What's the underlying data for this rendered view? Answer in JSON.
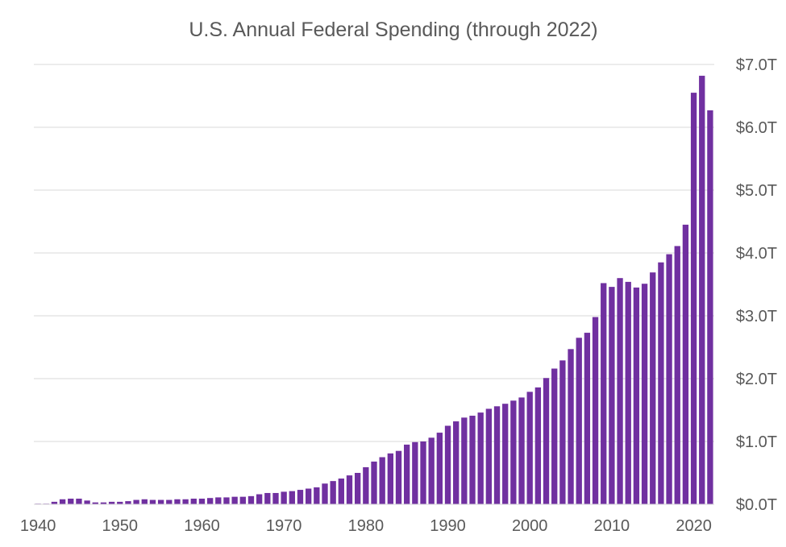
{
  "chart_data": {
    "type": "bar",
    "title": "U.S. Annual Federal Spending (through 2022)",
    "xlabel": "",
    "ylabel": "",
    "bar_color": "#7030a0",
    "grid": true,
    "y_axis_position": "right",
    "ylim": [
      0,
      7.0
    ],
    "y_ticks": [
      0,
      1,
      2,
      3,
      4,
      5,
      6,
      7
    ],
    "y_tick_labels": [
      "$0.0T",
      "$1.0T",
      "$2.0T",
      "$3.0T",
      "$4.0T",
      "$5.0T",
      "$6.0T",
      "$7.0T"
    ],
    "x_ticks": [
      1940,
      1950,
      1960,
      1970,
      1980,
      1990,
      2000,
      2010,
      2020
    ],
    "x_tick_labels": [
      "1940",
      "1950",
      "1960",
      "1970",
      "1980",
      "1990",
      "2000",
      "2010",
      "2020"
    ],
    "categories": [
      1940,
      1941,
      1942,
      1943,
      1944,
      1945,
      1946,
      1947,
      1948,
      1949,
      1950,
      1951,
      1952,
      1953,
      1954,
      1955,
      1956,
      1957,
      1958,
      1959,
      1960,
      1961,
      1962,
      1963,
      1964,
      1965,
      1966,
      1967,
      1968,
      1969,
      1970,
      1971,
      1972,
      1973,
      1974,
      1975,
      1976,
      1977,
      1978,
      1979,
      1980,
      1981,
      1982,
      1983,
      1984,
      1985,
      1986,
      1987,
      1988,
      1989,
      1990,
      1991,
      1992,
      1993,
      1994,
      1995,
      1996,
      1997,
      1998,
      1999,
      2000,
      2001,
      2002,
      2003,
      2004,
      2005,
      2006,
      2007,
      2008,
      2009,
      2010,
      2011,
      2012,
      2013,
      2014,
      2015,
      2016,
      2017,
      2018,
      2019,
      2020,
      2021,
      2022
    ],
    "values": [
      0.01,
      0.01,
      0.04,
      0.08,
      0.09,
      0.09,
      0.06,
      0.03,
      0.03,
      0.04,
      0.04,
      0.05,
      0.07,
      0.08,
      0.07,
      0.07,
      0.07,
      0.08,
      0.08,
      0.09,
      0.09,
      0.1,
      0.11,
      0.11,
      0.12,
      0.12,
      0.13,
      0.16,
      0.18,
      0.18,
      0.2,
      0.21,
      0.23,
      0.25,
      0.27,
      0.33,
      0.37,
      0.41,
      0.46,
      0.5,
      0.59,
      0.68,
      0.75,
      0.81,
      0.85,
      0.95,
      0.99,
      1.0,
      1.06,
      1.14,
      1.25,
      1.32,
      1.38,
      1.41,
      1.46,
      1.52,
      1.56,
      1.6,
      1.65,
      1.7,
      1.79,
      1.86,
      2.01,
      2.16,
      2.29,
      2.47,
      2.65,
      2.73,
      2.98,
      3.52,
      3.46,
      3.6,
      3.54,
      3.45,
      3.51,
      3.69,
      3.85,
      3.98,
      4.11,
      4.45,
      6.55,
      6.82,
      6.27
    ]
  }
}
